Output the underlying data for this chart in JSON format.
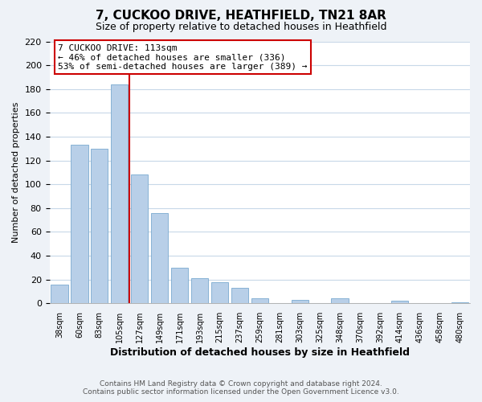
{
  "title": "7, CUCKOO DRIVE, HEATHFIELD, TN21 8AR",
  "subtitle": "Size of property relative to detached houses in Heathfield",
  "xlabel": "Distribution of detached houses by size in Heathfield",
  "ylabel": "Number of detached properties",
  "bar_labels": [
    "38sqm",
    "60sqm",
    "83sqm",
    "105sqm",
    "127sqm",
    "149sqm",
    "171sqm",
    "193sqm",
    "215sqm",
    "237sqm",
    "259sqm",
    "281sqm",
    "303sqm",
    "325sqm",
    "348sqm",
    "370sqm",
    "392sqm",
    "414sqm",
    "436sqm",
    "458sqm",
    "480sqm"
  ],
  "bar_heights": [
    16,
    133,
    130,
    184,
    108,
    76,
    30,
    21,
    18,
    13,
    4,
    0,
    3,
    0,
    4,
    0,
    0,
    2,
    0,
    0,
    1
  ],
  "bar_color": "#b8cfe8",
  "bar_edge_color": "#7aaad0",
  "vline_color": "#cc0000",
  "ylim": [
    0,
    220
  ],
  "yticks": [
    0,
    20,
    40,
    60,
    80,
    100,
    120,
    140,
    160,
    180,
    200,
    220
  ],
  "annotation_title": "7 CUCKOO DRIVE: 113sqm",
  "annotation_line1": "← 46% of detached houses are smaller (336)",
  "annotation_line2": "53% of semi-detached houses are larger (389) →",
  "footer_line1": "Contains HM Land Registry data © Crown copyright and database right 2024.",
  "footer_line2": "Contains public sector information licensed under the Open Government Licence v3.0.",
  "background_color": "#eef2f7",
  "plot_bg_color": "#ffffff",
  "grid_color": "#c8d8e8",
  "title_fontsize": 11,
  "subtitle_fontsize": 9,
  "xlabel_fontsize": 9,
  "ylabel_fontsize": 8
}
